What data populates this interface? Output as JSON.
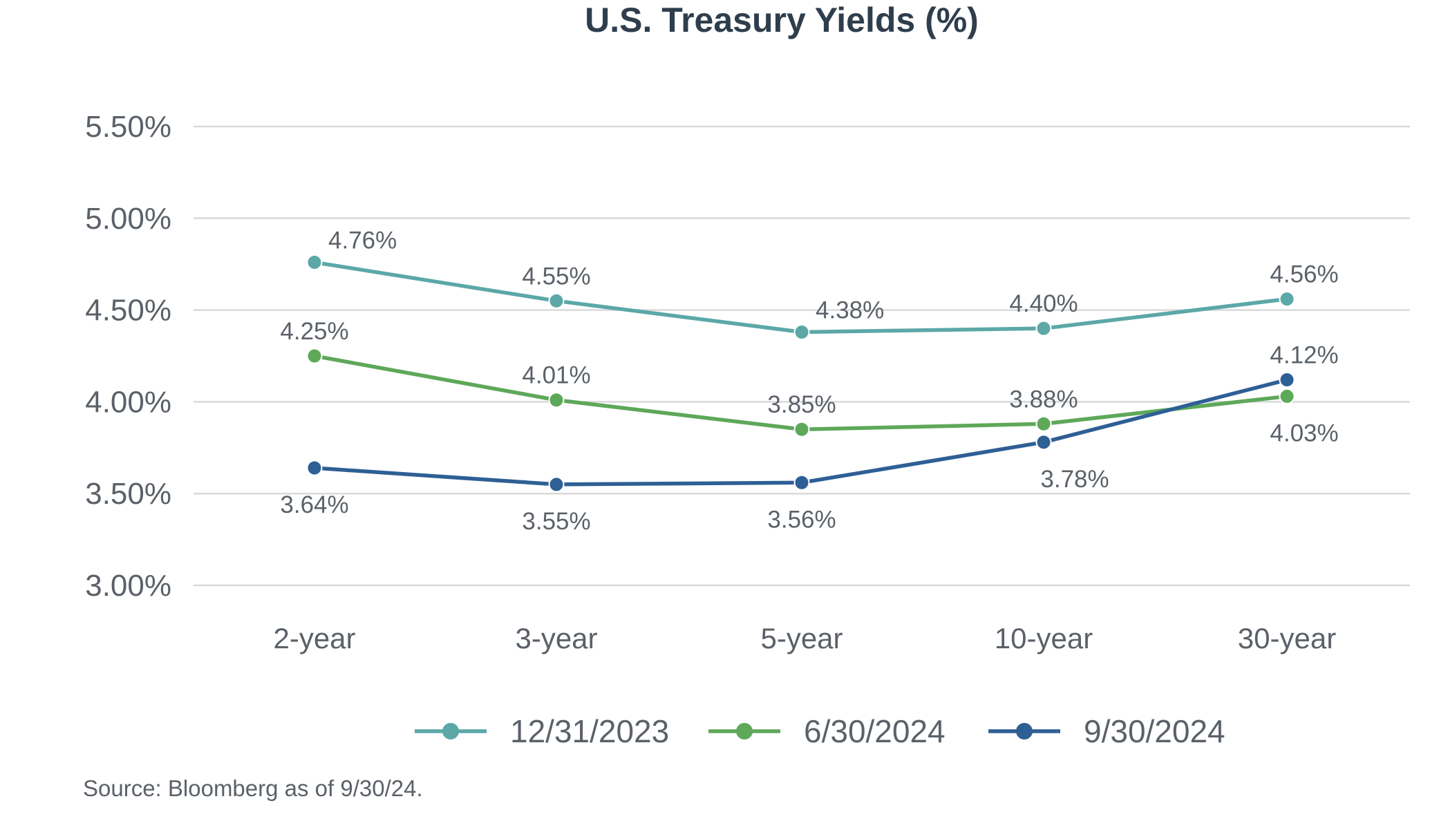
{
  "chart_data": {
    "type": "line",
    "title": "U.S. Treasury Yields (%)",
    "xlabel": "",
    "ylabel": "",
    "categories": [
      "2-year",
      "3-year",
      "5-year",
      "10-year",
      "30-year"
    ],
    "ylim": [
      3.0,
      5.5
    ],
    "yticks": [
      3.0,
      3.5,
      4.0,
      4.5,
      5.0,
      5.5
    ],
    "ytick_labels": [
      "3.00%",
      "3.50%",
      "4.00%",
      "4.50%",
      "5.00%",
      "5.50%"
    ],
    "grid": true,
    "legend_position": "bottom",
    "series": [
      {
        "name": "12/31/2023",
        "color": "#5ba8a7",
        "values": [
          4.76,
          4.55,
          4.38,
          4.4,
          4.56
        ],
        "labels": [
          "4.76%",
          "4.55%",
          "4.38%",
          "4.40%",
          "4.56%"
        ],
        "label_placement": [
          "above-right",
          "above",
          "above-right",
          "above",
          "above"
        ]
      },
      {
        "name": "6/30/2024",
        "color": "#5ea859",
        "values": [
          4.25,
          4.01,
          3.85,
          3.88,
          4.03
        ],
        "labels": [
          "4.25%",
          "4.01%",
          "3.85%",
          "3.88%",
          "4.03%"
        ],
        "label_placement": [
          "above",
          "above",
          "above",
          "above",
          "below"
        ]
      },
      {
        "name": "9/30/2024",
        "color": "#2e5f95",
        "values": [
          3.64,
          3.55,
          3.56,
          3.78,
          4.12
        ],
        "labels": [
          "3.64%",
          "3.55%",
          "3.56%",
          "3.78%",
          "4.12%"
        ],
        "label_placement": [
          "below",
          "below",
          "below",
          "below",
          "above"
        ]
      }
    ]
  },
  "source": "Source: Bloomberg as of 9/30/24."
}
